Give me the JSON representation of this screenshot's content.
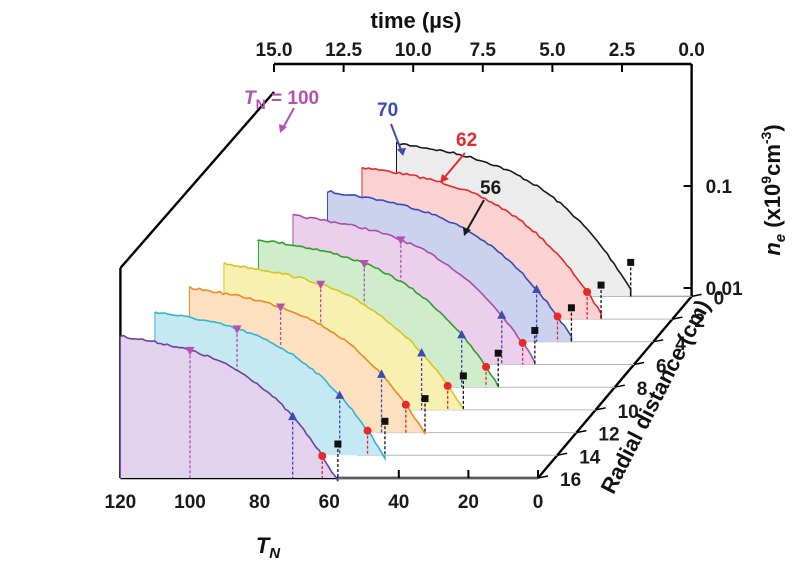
{
  "chart_data": {
    "type": "area",
    "view": "3d-waterfall",
    "top_axis": {
      "label": "time (µs)",
      "ticks": [
        "15.0",
        "12.5",
        "10.0",
        "7.5",
        "5.0",
        "2.5",
        "0.0"
      ],
      "range": [
        15.0,
        0.0
      ]
    },
    "bottom_axis": {
      "label_main": "T",
      "label_sub": "N",
      "ticks": [
        "120",
        "100",
        "80",
        "60",
        "40",
        "20",
        "0"
      ],
      "range": [
        120,
        0
      ]
    },
    "right_axis": {
      "label_var": "n",
      "label_sub": "e",
      "label_unit_open": " (x10",
      "label_unit_sup": "9",
      "label_unit_mid": "cm",
      "label_unit_sup2": "-3",
      "label_unit_close": ")",
      "ticks": [
        "0.1",
        "0.01"
      ],
      "scale": "log"
    },
    "depth_axis": {
      "label": "Radial distance (cm)",
      "ticks": [
        "0",
        "2",
        "4",
        "6",
        "8",
        "10",
        "12",
        "14",
        "16"
      ],
      "range": [
        0,
        16
      ]
    },
    "series": [
      {
        "r": 0,
        "tn_end": 17.5,
        "line": "#1a1a1a",
        "fill": "#ececec",
        "marks": [
          {
            "tn": 17.5,
            "m": "square"
          }
        ]
      },
      {
        "r": 2,
        "tn_end": 20.5,
        "line": "#e8282b",
        "fill": "#fbd2d2",
        "marks": [
          {
            "tn": 20.5,
            "m": "square"
          },
          {
            "tn": 24.5,
            "m": "circle"
          }
        ]
      },
      {
        "r": 4,
        "tn_end": 23.5,
        "line": "#3b4bb5",
        "fill": "#ccd2ee",
        "marks": [
          {
            "tn": 23.5,
            "m": "square"
          },
          {
            "tn": 27.5,
            "m": "circle"
          },
          {
            "tn": 33.5,
            "m": "triangle"
          }
        ]
      },
      {
        "r": 6,
        "tn_end": 28.5,
        "line": "#a451a8",
        "fill": "#eccfec",
        "marks": [
          {
            "tn": 28.5,
            "m": "square"
          },
          {
            "tn": 32,
            "m": "circle"
          },
          {
            "tn": 38,
            "m": "triangle"
          },
          {
            "tn": 67,
            "m": "invtriangle"
          }
        ]
      },
      {
        "r": 8,
        "tn_end": 33.5,
        "line": "#2ea02e",
        "fill": "#cfeccb",
        "marks": [
          {
            "tn": 33.5,
            "m": "square"
          },
          {
            "tn": 37,
            "m": "circle"
          },
          {
            "tn": 44,
            "m": "triangle"
          },
          {
            "tn": 72,
            "m": "invtriangle"
          }
        ]
      },
      {
        "r": 10,
        "tn_end": 38,
        "line": "#d8c61c",
        "fill": "#f8f0b0",
        "marks": [
          {
            "tn": 38,
            "m": "square"
          },
          {
            "tn": 42.5,
            "m": "circle"
          },
          {
            "tn": 50,
            "m": "triangle"
          },
          {
            "tn": 79,
            "m": "invtriangle"
          }
        ]
      },
      {
        "r": 12,
        "tn_end": 43.5,
        "line": "#f08a1f",
        "fill": "#fde0bf",
        "marks": [
          {
            "tn": 43.5,
            "m": "square"
          },
          {
            "tn": 49,
            "m": "circle"
          },
          {
            "tn": 56,
            "m": "triangle"
          },
          {
            "tn": 85,
            "m": "invtriangle"
          }
        ]
      },
      {
        "r": 14,
        "tn_end": 49.5,
        "line": "#2eb5d4",
        "fill": "#c6e8f2",
        "marks": [
          {
            "tn": 49.5,
            "m": "square"
          },
          {
            "tn": 54.5,
            "m": "circle"
          },
          {
            "tn": 62.5,
            "m": "triangle"
          },
          {
            "tn": 92,
            "m": "invtriangle"
          }
        ]
      },
      {
        "r": 16,
        "tn_end": 57.5,
        "line": "#6a44a0",
        "fill": "#e2d2ee",
        "marks": [
          {
            "tn": 57.5,
            "m": "square"
          },
          {
            "tn": 62,
            "m": "circle"
          },
          {
            "tn": 70.5,
            "m": "triangle"
          },
          {
            "tn": 100,
            "m": "invtriangle"
          }
        ]
      }
    ],
    "annotations": [
      {
        "main": "T",
        "sub": "N",
        "rest": " = 100",
        "color": "#b64fb0"
      },
      {
        "text": "70",
        "color": "#3b4bb5"
      },
      {
        "text": "62",
        "color": "#e8282b"
      },
      {
        "text": "56",
        "color": "#1a1a1a"
      }
    ]
  }
}
